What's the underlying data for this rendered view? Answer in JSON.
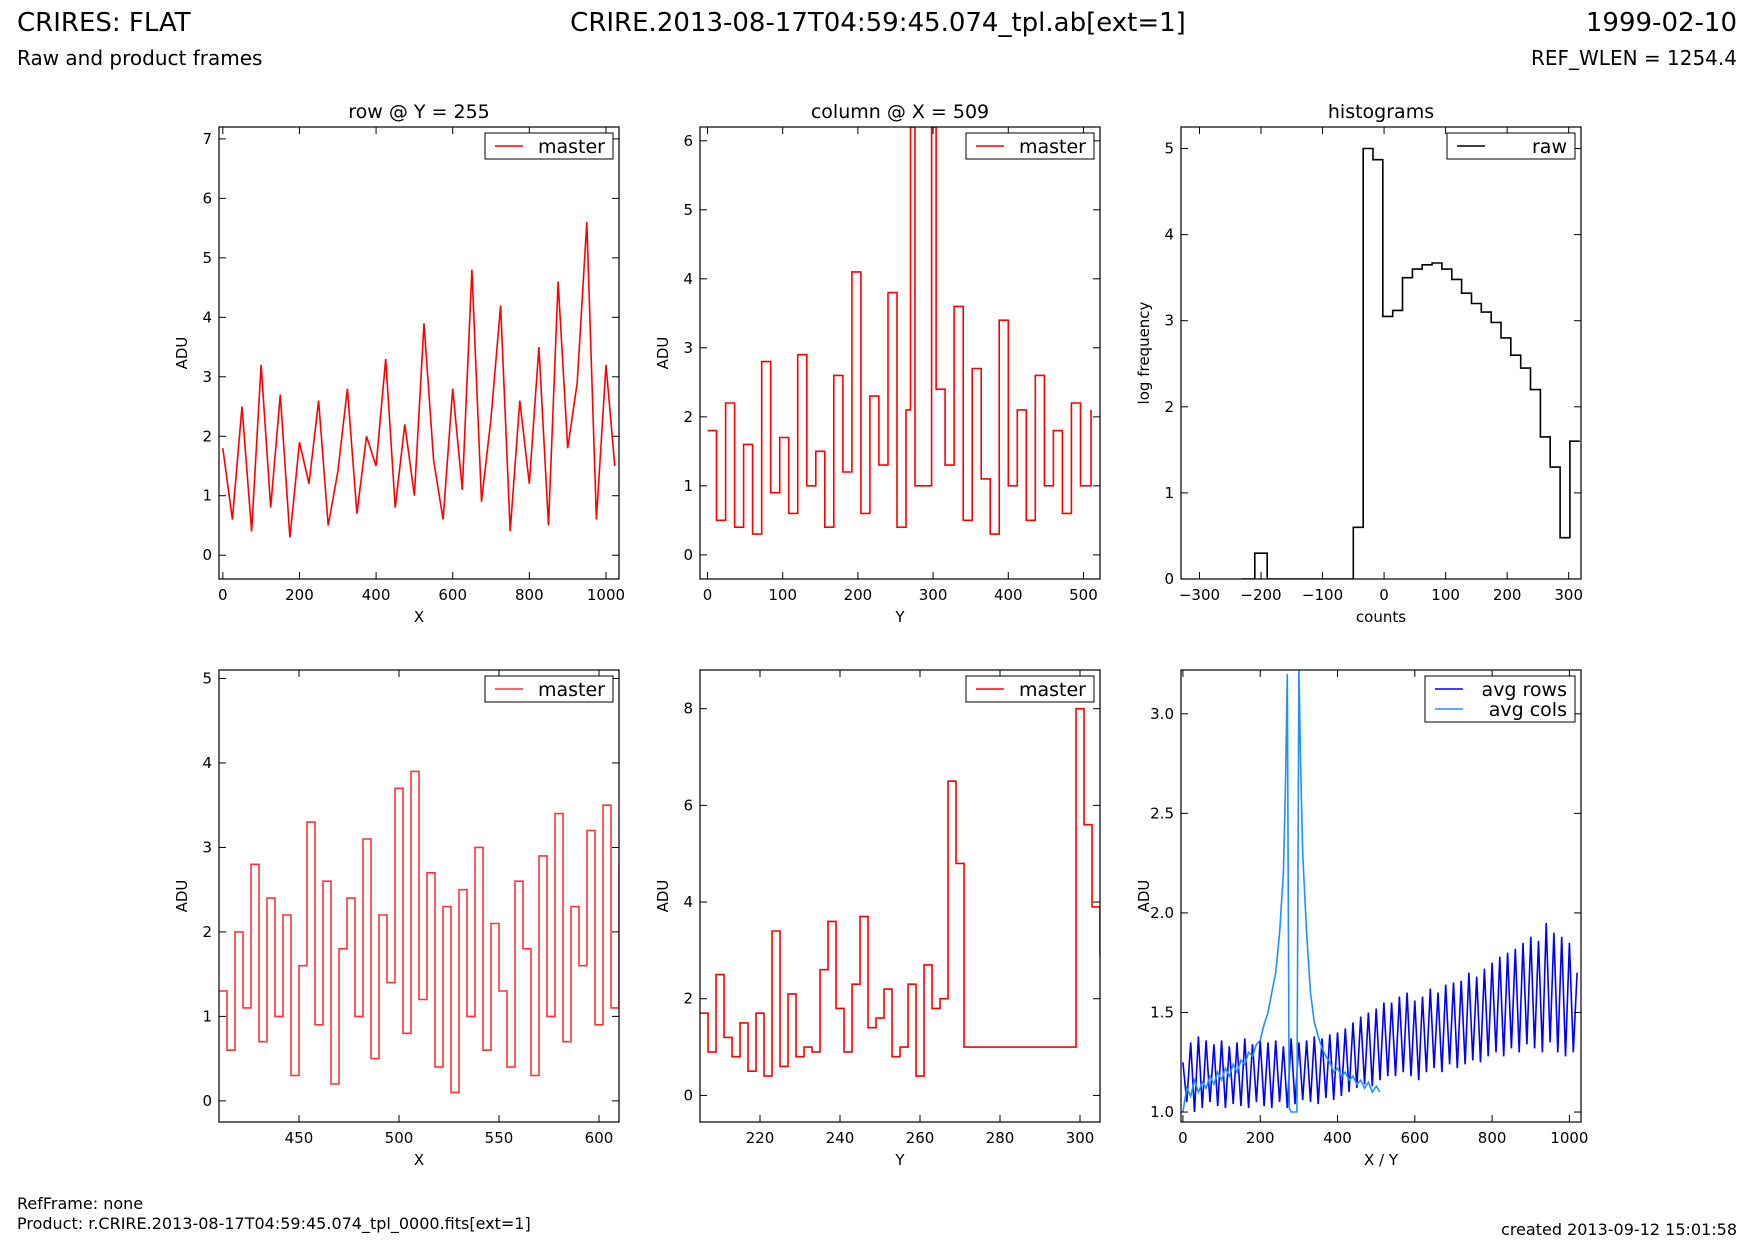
{
  "header": {
    "title": "CRIRES: FLAT",
    "subtitle": "Raw and product frames",
    "file": "CRIRE.2013-08-17T04:59:45.074_tpl.ab[ext=1]",
    "date": "1999-02-10",
    "ref_wlen": "REF_WLEN = 1254.4"
  },
  "footer": {
    "refframe": "RefFrame: none",
    "product": "Product: r.CRIRE.2013-08-17T04:59:45.074_tpl_0000.fits[ext=1]",
    "created": "created 2013-09-12 15:01:58"
  },
  "colors": {
    "master": "#ff0000",
    "master_zoom": "#ff3333",
    "raw": "#000000",
    "avg_rows": "#0000ff",
    "avg_cols": "#1e90ff"
  },
  "chart_data": [
    {
      "id": "row-cut",
      "type": "line",
      "title": "row @ Y = 255",
      "xlabel": "X",
      "ylabel": "ADU",
      "xlim": [
        -10,
        1034
      ],
      "ylim": [
        -0.4,
        7.2
      ],
      "xticks": [
        0,
        200,
        400,
        600,
        800,
        1000
      ],
      "yticks": [
        0,
        1,
        2,
        3,
        4,
        5,
        6,
        7
      ],
      "legend": "top-right",
      "series": [
        {
          "name": "master",
          "color": "#ff0000",
          "step": false,
          "x": [
            0,
            25,
            50,
            75,
            100,
            125,
            150,
            175,
            200,
            225,
            250,
            275,
            300,
            325,
            350,
            375,
            400,
            425,
            450,
            475,
            500,
            525,
            550,
            575,
            600,
            625,
            650,
            675,
            700,
            725,
            750,
            775,
            800,
            825,
            850,
            875,
            900,
            925,
            950,
            975,
            1000,
            1023
          ],
          "y": [
            1.8,
            0.6,
            2.5,
            0.4,
            3.2,
            0.8,
            2.7,
            0.3,
            1.9,
            1.2,
            2.6,
            0.5,
            1.4,
            2.8,
            0.7,
            2.0,
            1.5,
            3.3,
            0.8,
            2.2,
            1.0,
            3.9,
            1.6,
            0.6,
            2.8,
            1.1,
            4.8,
            0.9,
            2.3,
            4.2,
            0.4,
            2.6,
            1.2,
            3.5,
            0.5,
            4.6,
            1.8,
            2.9,
            5.6,
            0.6,
            3.2,
            1.5
          ]
        }
      ]
    },
    {
      "id": "column-cut",
      "type": "line",
      "title": "column @ X = 509",
      "xlabel": "Y",
      "ylabel": "ADU",
      "xlim": [
        -10,
        522
      ],
      "ylim": [
        -0.35,
        6.2
      ],
      "xticks": [
        0,
        100,
        200,
        300,
        400,
        500
      ],
      "yticks": [
        0,
        1,
        2,
        3,
        4,
        5,
        6
      ],
      "legend": "top-right",
      "series": [
        {
          "name": "master",
          "color": "#ff0000",
          "step": true,
          "x": [
            0,
            12,
            24,
            36,
            48,
            60,
            72,
            84,
            96,
            108,
            120,
            132,
            144,
            156,
            168,
            180,
            192,
            204,
            216,
            228,
            240,
            252,
            264,
            270,
            276,
            290,
            298,
            304,
            316,
            328,
            340,
            352,
            364,
            376,
            388,
            400,
            412,
            424,
            436,
            448,
            460,
            472,
            484,
            496,
            510
          ],
          "y": [
            1.8,
            0.5,
            2.2,
            0.4,
            1.6,
            0.3,
            2.8,
            0.9,
            1.7,
            0.6,
            2.9,
            1.0,
            1.5,
            0.4,
            2.6,
            1.2,
            4.1,
            0.6,
            2.3,
            1.3,
            3.8,
            0.4,
            2.1,
            6.2,
            1.0,
            1.0,
            6.2,
            2.4,
            1.3,
            3.6,
            0.5,
            2.7,
            1.1,
            0.3,
            3.4,
            1.0,
            2.1,
            0.5,
            2.6,
            1.0,
            1.8,
            0.6,
            2.2,
            1.0,
            2.1
          ]
        }
      ]
    },
    {
      "id": "histograms",
      "type": "line",
      "title": "histograms",
      "xlabel": "counts",
      "ylabel": "log frequency",
      "xlim": [
        -330,
        320
      ],
      "ylim": [
        0,
        5.25
      ],
      "xticks": [
        -300,
        -200,
        -100,
        0,
        100,
        200,
        300
      ],
      "yticks": [
        0,
        1,
        2,
        3,
        4,
        5
      ],
      "legend": "top-right",
      "series": [
        {
          "name": "raw",
          "color": "#000000",
          "step": true,
          "x": [
            -230,
            -210,
            -190,
            -170,
            -150,
            -130,
            -110,
            -90,
            -70,
            -50,
            -34,
            -18,
            -2,
            14,
            30,
            46,
            62,
            78,
            94,
            110,
            126,
            142,
            158,
            174,
            190,
            206,
            222,
            238,
            254,
            270,
            286,
            302,
            318
          ],
          "y": [
            0,
            0.3,
            0,
            0,
            0,
            0,
            0,
            0,
            0,
            0.6,
            5.0,
            4.87,
            3.05,
            3.12,
            3.5,
            3.6,
            3.65,
            3.67,
            3.6,
            3.48,
            3.32,
            3.2,
            3.1,
            2.98,
            2.8,
            2.6,
            2.45,
            2.2,
            1.65,
            1.3,
            0.48,
            1.6,
            1.6
          ]
        }
      ]
    },
    {
      "id": "row-zoom",
      "type": "line",
      "title": "",
      "xlabel": "X",
      "ylabel": "ADU",
      "xlim": [
        410,
        610
      ],
      "ylim": [
        -0.25,
        5.1
      ],
      "xticks": [
        450,
        500,
        550,
        600
      ],
      "yticks": [
        0,
        1,
        2,
        3,
        4,
        5
      ],
      "legend": "top-right",
      "series": [
        {
          "name": "master",
          "color": "#ff3333",
          "step": true,
          "x": [
            410,
            414,
            418,
            422,
            426,
            430,
            434,
            438,
            442,
            446,
            450,
            454,
            458,
            462,
            466,
            470,
            474,
            478,
            482,
            486,
            490,
            494,
            498,
            502,
            506,
            510,
            514,
            518,
            522,
            526,
            530,
            534,
            538,
            542,
            546,
            550,
            554,
            558,
            562,
            566,
            570,
            574,
            578,
            582,
            586,
            590,
            594,
            598,
            602,
            606,
            610
          ],
          "y": [
            1.3,
            0.6,
            2.0,
            1.1,
            2.8,
            0.7,
            2.4,
            1.0,
            2.2,
            0.3,
            1.6,
            3.3,
            0.9,
            2.6,
            0.2,
            1.8,
            2.4,
            1.0,
            3.1,
            0.5,
            2.2,
            1.4,
            3.7,
            0.8,
            3.9,
            1.2,
            2.7,
            0.4,
            2.3,
            0.1,
            2.5,
            1.0,
            3.0,
            0.6,
            2.1,
            1.3,
            0.4,
            2.6,
            1.8,
            0.3,
            2.9,
            1.0,
            3.4,
            0.7,
            2.3,
            1.6,
            3.2,
            0.9,
            3.5,
            1.1,
            2.8
          ]
        }
      ]
    },
    {
      "id": "column-zoom",
      "type": "line",
      "title": "",
      "xlabel": "Y",
      "ylabel": "ADU",
      "xlim": [
        205,
        305
      ],
      "ylim": [
        -0.55,
        8.8
      ],
      "xticks": [
        220,
        240,
        260,
        280,
        300
      ],
      "yticks": [
        0,
        2,
        4,
        6,
        8
      ],
      "legend": "top-right",
      "series": [
        {
          "name": "master",
          "color": "#ff0000",
          "step": true,
          "x": [
            205,
            207,
            209,
            211,
            213,
            215,
            217,
            219,
            221,
            223,
            225,
            227,
            229,
            231,
            233,
            235,
            237,
            239,
            241,
            243,
            245,
            247,
            249,
            251,
            253,
            255,
            257,
            259,
            261,
            263,
            265,
            267,
            269,
            271,
            273,
            275,
            277,
            279,
            281,
            283,
            285,
            287,
            289,
            291,
            293,
            295,
            297,
            299,
            301,
            303,
            305
          ],
          "y": [
            1.7,
            0.9,
            2.5,
            1.2,
            0.8,
            1.5,
            0.5,
            1.7,
            0.4,
            3.4,
            0.6,
            2.1,
            0.8,
            1.0,
            0.9,
            2.6,
            3.6,
            1.8,
            0.9,
            2.3,
            3.7,
            1.4,
            1.6,
            2.2,
            0.8,
            1.0,
            2.3,
            0.4,
            2.7,
            1.8,
            2.0,
            6.5,
            4.8,
            1.0,
            1.0,
            1.0,
            1.0,
            1.0,
            1.0,
            1.0,
            1.0,
            1.0,
            1.0,
            1.0,
            1.0,
            1.0,
            1.0,
            8.0,
            5.6,
            3.9,
            2.9
          ]
        }
      ]
    },
    {
      "id": "averages",
      "type": "line",
      "title": "",
      "xlabel": "X / Y",
      "ylabel": "ADU",
      "xlim": [
        -5,
        1030
      ],
      "ylim": [
        0.95,
        3.22
      ],
      "xticks": [
        0,
        200,
        400,
        600,
        800,
        1000
      ],
      "yticks": [
        1.0,
        1.5,
        2.0,
        2.5,
        3.0
      ],
      "ytick_labels": [
        "1.0",
        "1.5",
        "2.0",
        "2.5",
        "3.0"
      ],
      "legend": "top-right",
      "series": [
        {
          "name": "avg rows",
          "color": "#0000ff",
          "step": false,
          "x": [
            0,
            10,
            20,
            30,
            40,
            50,
            60,
            70,
            80,
            90,
            100,
            110,
            120,
            130,
            140,
            150,
            160,
            170,
            180,
            190,
            200,
            210,
            220,
            230,
            240,
            250,
            260,
            270,
            280,
            290,
            300,
            310,
            320,
            330,
            340,
            350,
            360,
            370,
            380,
            390,
            400,
            410,
            420,
            430,
            440,
            450,
            460,
            470,
            480,
            490,
            500,
            510,
            520,
            530,
            540,
            550,
            560,
            570,
            580,
            590,
            600,
            610,
            620,
            630,
            640,
            650,
            660,
            670,
            680,
            690,
            700,
            710,
            720,
            730,
            740,
            750,
            760,
            770,
            780,
            790,
            800,
            810,
            820,
            830,
            840,
            850,
            860,
            870,
            880,
            890,
            900,
            910,
            920,
            930,
            940,
            950,
            960,
            970,
            980,
            990,
            1000,
            1010,
            1020
          ],
          "y": [
            1.25,
            1.05,
            1.35,
            1.0,
            1.38,
            1.02,
            1.36,
            1.05,
            1.34,
            1.03,
            1.36,
            1.02,
            1.33,
            1.04,
            1.35,
            1.03,
            1.37,
            1.02,
            1.34,
            1.05,
            1.36,
            1.03,
            1.35,
            1.02,
            1.36,
            1.05,
            1.33,
            1.02,
            1.37,
            1.04,
            1.35,
            1.06,
            1.36,
            1.05,
            1.38,
            1.04,
            1.37,
            1.07,
            1.39,
            1.06,
            1.4,
            1.08,
            1.42,
            1.1,
            1.45,
            1.12,
            1.48,
            1.14,
            1.5,
            1.13,
            1.52,
            1.16,
            1.55,
            1.18,
            1.55,
            1.18,
            1.58,
            1.2,
            1.6,
            1.18,
            1.56,
            1.16,
            1.58,
            1.2,
            1.62,
            1.22,
            1.6,
            1.2,
            1.64,
            1.24,
            1.65,
            1.22,
            1.66,
            1.24,
            1.7,
            1.26,
            1.68,
            1.25,
            1.72,
            1.28,
            1.75,
            1.3,
            1.78,
            1.28,
            1.8,
            1.32,
            1.82,
            1.3,
            1.85,
            1.34,
            1.88,
            1.32,
            1.86,
            1.3,
            1.95,
            1.35,
            1.9,
            1.3,
            1.88,
            1.28,
            1.85,
            1.3,
            1.7
          ]
        },
        {
          "name": "avg cols",
          "color": "#1e90ff",
          "step": false,
          "x": [
            0,
            10,
            20,
            30,
            40,
            50,
            60,
            70,
            80,
            90,
            100,
            110,
            120,
            130,
            140,
            150,
            160,
            170,
            180,
            190,
            200,
            210,
            220,
            230,
            240,
            250,
            260,
            265,
            270,
            275,
            280,
            285,
            290,
            295,
            300,
            305,
            310,
            320,
            330,
            340,
            350,
            360,
            370,
            380,
            390,
            400,
            410,
            420,
            430,
            440,
            450,
            460,
            470,
            480,
            490,
            500,
            510
          ],
          "y": [
            1.0,
            1.12,
            1.08,
            1.16,
            1.1,
            1.15,
            1.12,
            1.18,
            1.14,
            1.2,
            1.16,
            1.22,
            1.18,
            1.24,
            1.2,
            1.26,
            1.24,
            1.3,
            1.28,
            1.34,
            1.36,
            1.44,
            1.5,
            1.6,
            1.7,
            1.9,
            2.2,
            2.6,
            3.2,
            1.02,
            1.0,
            1.0,
            1.0,
            1.0,
            3.22,
            2.7,
            2.3,
            1.9,
            1.6,
            1.45,
            1.38,
            1.32,
            1.28,
            1.25,
            1.2,
            1.22,
            1.18,
            1.2,
            1.16,
            1.18,
            1.14,
            1.16,
            1.12,
            1.15,
            1.1,
            1.13,
            1.1
          ]
        }
      ]
    }
  ]
}
